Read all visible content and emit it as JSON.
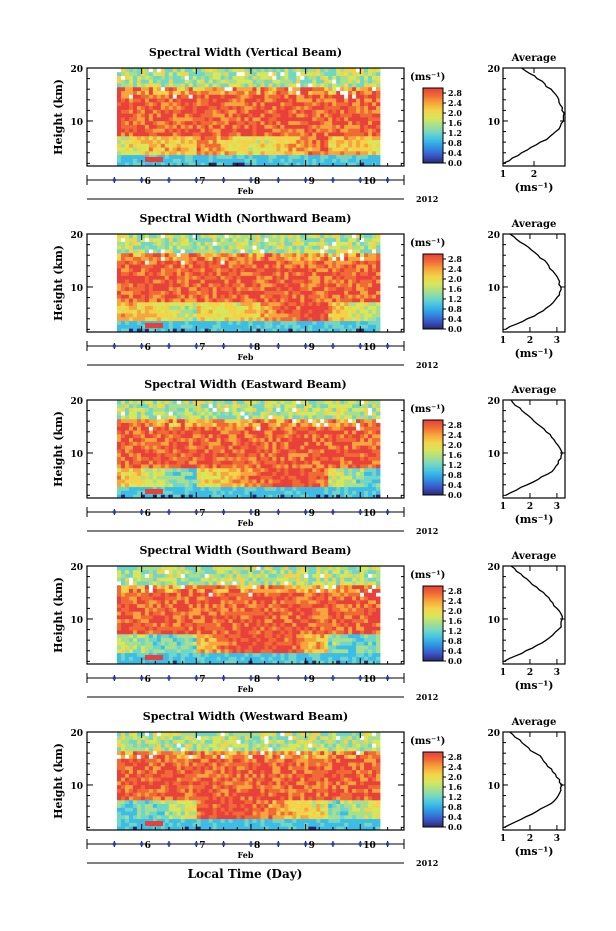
{
  "figure": {
    "xlabel": "Local Time (Day)",
    "month_label": "Feb",
    "year_label": "2012",
    "height_label": "Height (km)",
    "unit_label": "(ms⁻¹)",
    "avg_title": "Average",
    "avg_unit": "(ms⁻¹)"
  },
  "colors": {
    "scale": [
      "#2a2a6e",
      "#3a56c8",
      "#2f8fe0",
      "#3cbde8",
      "#6fd6c8",
      "#a7df8e",
      "#d8e65a",
      "#f4d34a",
      "#f7a53c",
      "#f06a35",
      "#e8403a"
    ],
    "marker": "#2a3fb5"
  },
  "chart_data": [
    {
      "type": "heatmap",
      "title": "Spectral Width (Vertical Beam)",
      "x_ticks": [
        "6",
        "7",
        "8",
        "9",
        "10"
      ],
      "y_ticks": [
        "20",
        "10"
      ],
      "colorbar_ticks": [
        "2.8",
        "2.4",
        "2.0",
        "1.6",
        "1.2",
        "0.8",
        "0.4",
        "0.0"
      ],
      "colorbar_range": [
        0,
        3.0
      ],
      "xlim": [
        5,
        10.8
      ],
      "ylim": [
        1.5,
        20
      ],
      "profile": {
        "type": "line",
        "x_ticks": [
          "1",
          "2"
        ],
        "xlim": [
          1,
          3.0
        ],
        "heights": [
          2,
          3,
          4,
          5,
          6,
          7,
          8,
          9,
          10,
          11,
          12,
          13,
          14,
          15,
          16,
          17,
          18,
          19,
          20
        ],
        "values": [
          1.0,
          1.3,
          1.6,
          1.9,
          2.2,
          2.5,
          2.7,
          2.85,
          2.95,
          2.95,
          2.9,
          2.85,
          2.8,
          2.7,
          2.55,
          2.35,
          2.1,
          1.85,
          1.6
        ]
      }
    },
    {
      "type": "heatmap",
      "title": "Spectral Width (Northward Beam)",
      "x_ticks": [
        "6",
        "7",
        "8",
        "9",
        "10"
      ],
      "y_ticks": [
        "20",
        "10"
      ],
      "colorbar_ticks": [
        "2.8",
        "2.4",
        "2.0",
        "1.6",
        "1.2",
        "0.8",
        "0.4",
        "0.0"
      ],
      "colorbar_range": [
        0,
        3.0
      ],
      "xlim": [
        5,
        10.8
      ],
      "ylim": [
        1.5,
        20
      ],
      "profile": {
        "type": "line",
        "x_ticks": [
          "1",
          "2",
          "3"
        ],
        "xlim": [
          1,
          3.3
        ],
        "heights": [
          2,
          3,
          4,
          5,
          6,
          7,
          8,
          9,
          10,
          11,
          12,
          13,
          14,
          15,
          16,
          17,
          18,
          19,
          20
        ],
        "values": [
          1.1,
          1.5,
          1.9,
          2.3,
          2.6,
          2.85,
          3.0,
          3.1,
          3.15,
          3.1,
          3.0,
          2.85,
          2.7,
          2.55,
          2.3,
          2.05,
          1.8,
          1.5,
          1.25
        ]
      }
    },
    {
      "type": "heatmap",
      "title": "Spectral Width (Eastward Beam)",
      "x_ticks": [
        "6",
        "7",
        "8",
        "9",
        "10"
      ],
      "y_ticks": [
        "20",
        "10"
      ],
      "colorbar_ticks": [
        "2.8",
        "2.4",
        "2.0",
        "1.6",
        "1.2",
        "0.8",
        "0.4",
        "0.0"
      ],
      "colorbar_range": [
        0,
        3.0
      ],
      "xlim": [
        5,
        10.8
      ],
      "ylim": [
        1.5,
        20
      ],
      "profile": {
        "type": "line",
        "x_ticks": [
          "1",
          "2",
          "3"
        ],
        "xlim": [
          1,
          3.3
        ],
        "heights": [
          2,
          3,
          4,
          5,
          6,
          7,
          8,
          9,
          10,
          11,
          12,
          13,
          14,
          15,
          16,
          17,
          18,
          19,
          20
        ],
        "values": [
          1.1,
          1.5,
          1.9,
          2.3,
          2.65,
          2.9,
          3.05,
          3.15,
          3.2,
          3.1,
          2.95,
          2.8,
          2.6,
          2.4,
          2.15,
          1.95,
          1.7,
          1.45,
          1.3
        ]
      }
    },
    {
      "type": "heatmap",
      "title": "Spectral Width (Southward Beam)",
      "x_ticks": [
        "6",
        "7",
        "8",
        "9",
        "10"
      ],
      "y_ticks": [
        "20",
        "10"
      ],
      "colorbar_ticks": [
        "2.8",
        "2.4",
        "2.0",
        "1.6",
        "1.2",
        "0.8",
        "0.4",
        "0.0"
      ],
      "colorbar_range": [
        0,
        3.0
      ],
      "xlim": [
        5,
        10.8
      ],
      "ylim": [
        1.5,
        20
      ],
      "profile": {
        "type": "line",
        "x_ticks": [
          "1",
          "2",
          "3"
        ],
        "xlim": [
          1,
          3.3
        ],
        "heights": [
          2,
          3,
          4,
          5,
          6,
          7,
          8,
          9,
          10,
          11,
          12,
          13,
          14,
          15,
          16,
          17,
          18,
          19,
          20
        ],
        "values": [
          1.05,
          1.45,
          1.85,
          2.25,
          2.6,
          2.85,
          3.05,
          3.15,
          3.2,
          3.15,
          3.0,
          2.85,
          2.7,
          2.5,
          2.25,
          2.0,
          1.75,
          1.5,
          1.3
        ]
      }
    },
    {
      "type": "heatmap",
      "title": "Spectral Width (Westward Beam)",
      "x_ticks": [
        "6",
        "7",
        "8",
        "9",
        "10"
      ],
      "y_ticks": [
        "20",
        "10"
      ],
      "colorbar_ticks": [
        "2.8",
        "2.4",
        "2.0",
        "1.6",
        "1.2",
        "0.8",
        "0.4",
        "0.0"
      ],
      "colorbar_range": [
        0,
        3.0
      ],
      "xlim": [
        5,
        10.8
      ],
      "ylim": [
        1.5,
        20
      ],
      "profile": {
        "type": "line",
        "x_ticks": [
          "1",
          "2",
          "3"
        ],
        "xlim": [
          1,
          3.3
        ],
        "heights": [
          2,
          3,
          4,
          5,
          6,
          7,
          8,
          9,
          10,
          11,
          12,
          13,
          14,
          15,
          16,
          17,
          18,
          19,
          20
        ],
        "values": [
          1.05,
          1.45,
          1.85,
          2.25,
          2.6,
          2.9,
          3.05,
          3.15,
          3.2,
          3.1,
          2.95,
          2.8,
          2.6,
          2.45,
          2.2,
          1.95,
          1.7,
          1.45,
          1.25
        ]
      }
    }
  ]
}
